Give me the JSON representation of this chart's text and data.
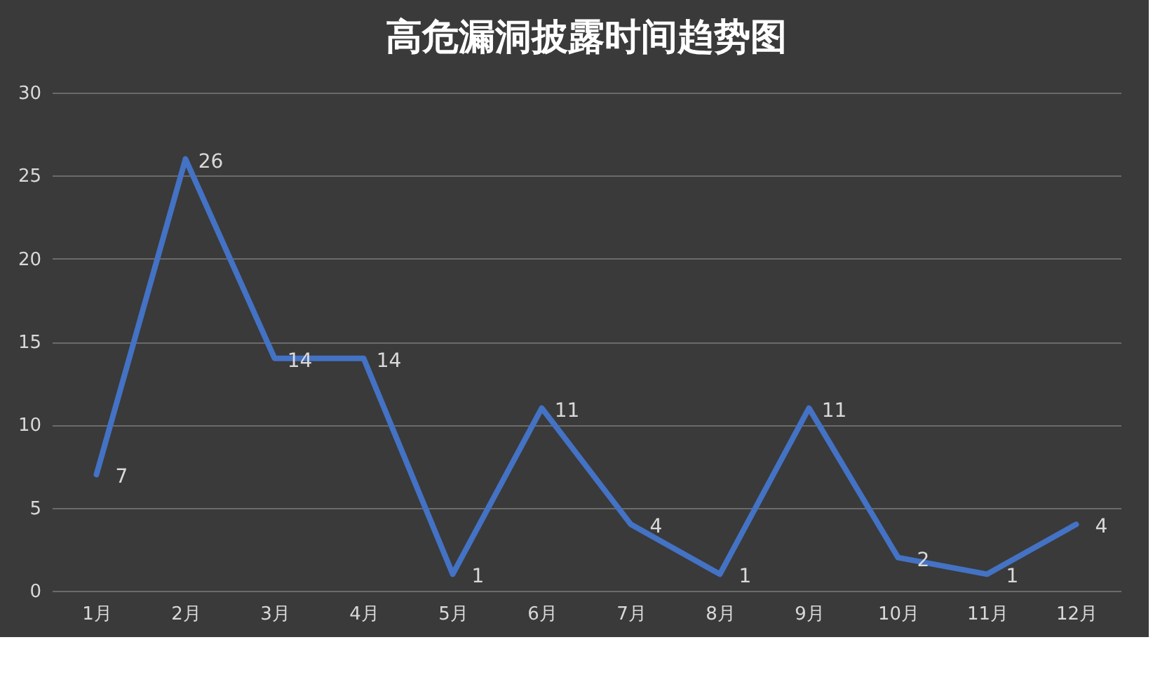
{
  "chart_data": {
    "type": "line",
    "title": "高危漏洞披露时间趋势图",
    "categories": [
      "1月",
      "2月",
      "3月",
      "4月",
      "5月",
      "6月",
      "7月",
      "8月",
      "9月",
      "10月",
      "11月",
      "12月"
    ],
    "series": [
      {
        "color": "#4472c4",
        "values": [
          7,
          26,
          14,
          14,
          1,
          11,
          4,
          1,
          11,
          2,
          1,
          4
        ]
      }
    ],
    "ylim": [
      0,
      30
    ],
    "yticks": [
      0,
      5,
      10,
      15,
      20,
      25,
      30
    ],
    "grid": "y",
    "data_labels": true,
    "marker": "none",
    "line_style": "solid",
    "legend": false
  }
}
